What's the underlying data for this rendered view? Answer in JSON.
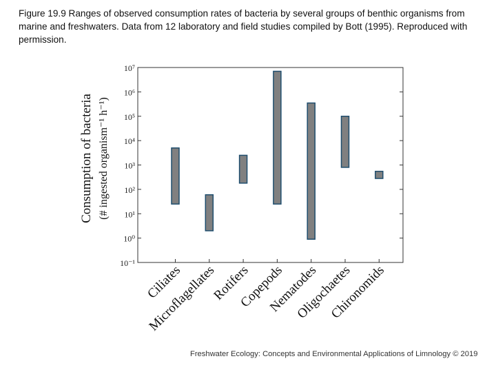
{
  "caption": "Figure 19.9 Ranges of observed consumption rates of bacteria by several groups of benthic organisms from marine and freshwaters. Data from 12 laboratory and field studies compiled by Bott (1995). Reproduced with permission.",
  "footer": "Freshwater Ecology: Concepts and Environmental Applications of Limnology © 2019",
  "chart_data": {
    "type": "bar",
    "subtype": "range",
    "yscale": "log",
    "ylabel_line1": "Consumption of bacteria",
    "ylabel_line2": "(# ingested organism⁻¹ h⁻¹)",
    "ylim_exp": [
      -1,
      7
    ],
    "yticks": [
      {
        "exp": -1,
        "label": "10⁻¹"
      },
      {
        "exp": 0,
        "label": "10⁰"
      },
      {
        "exp": 1,
        "label": "10¹"
      },
      {
        "exp": 2,
        "label": "10²"
      },
      {
        "exp": 3,
        "label": "10³"
      },
      {
        "exp": 4,
        "label": "10⁴"
      },
      {
        "exp": 5,
        "label": "10⁵"
      },
      {
        "exp": 6,
        "label": "10⁶"
      },
      {
        "exp": 7,
        "label": "10⁷"
      }
    ],
    "categories": [
      "Ciliates",
      "Microflagellates",
      "Rotifers",
      "Copepods",
      "Nematodes",
      "Oligochaetes",
      "Chironomids"
    ],
    "ranges": [
      {
        "low": 25,
        "high": 5000
      },
      {
        "low": 2,
        "high": 60
      },
      {
        "low": 180,
        "high": 2500
      },
      {
        "low": 25,
        "high": 7000000
      },
      {
        "low": 0.9,
        "high": 350000
      },
      {
        "low": 800,
        "high": 100000
      },
      {
        "low": 280,
        "high": 550
      }
    ],
    "bar_color": "#808080",
    "bar_edge_color": "#1f4e6e"
  }
}
